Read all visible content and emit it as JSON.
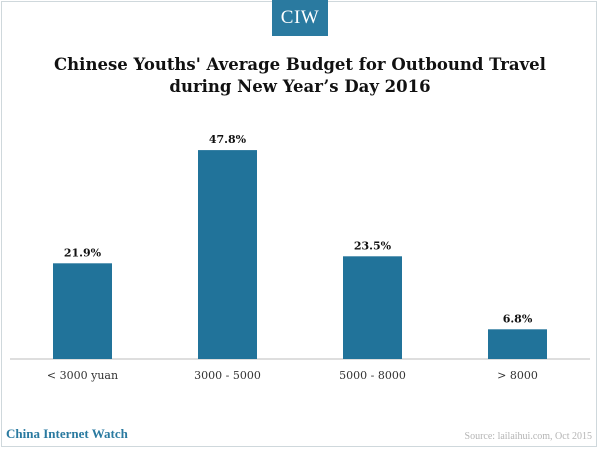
{
  "logo": {
    "text": "CIW"
  },
  "title_lines": [
    "Chinese Youths' Average Budget for Outbound Travel",
    "during New Year’s Day 2016"
  ],
  "chart_data": {
    "type": "bar",
    "categories": [
      "< 3000 yuan",
      "3000 - 5000",
      "5000 - 8000",
      "> 8000"
    ],
    "values": [
      21.9,
      47.8,
      23.5,
      6.8
    ],
    "data_labels": [
      "21.9%",
      "47.8%",
      "23.5%",
      "6.8%"
    ],
    "title": "Chinese Youths' Average Budget for Outbound Travel during New Year’s Day 2016",
    "xlabel": "",
    "ylabel": "",
    "ylim": [
      0,
      50
    ],
    "grid": false,
    "legend": "none",
    "colors": {
      "bar": "#21739a",
      "axis": "#bdbdbd"
    }
  },
  "footer": {
    "brand": "China Internet Watch",
    "source": "Source: lailaihui.com,   Oct 2015"
  }
}
